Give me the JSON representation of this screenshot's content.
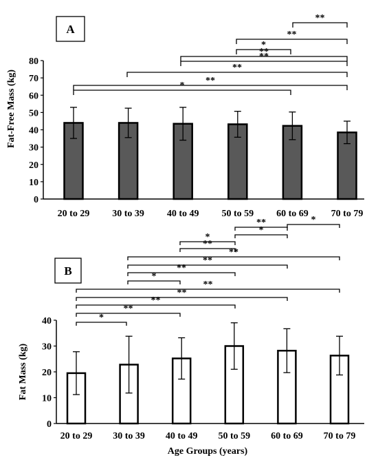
{
  "chart_data": [
    {
      "type": "bar",
      "panel_label": "A",
      "categories": [
        "20 to 29",
        "30 to 39",
        "40 to 49",
        "50 to 59",
        "60 to 69",
        "70 to 79"
      ],
      "values": [
        44,
        44,
        43.5,
        43.2,
        42.3,
        38.5
      ],
      "error": [
        9,
        8.5,
        9.5,
        7.5,
        8,
        6.5
      ],
      "ylabel": "Fat-Free Mass (kg)",
      "xlabel": "",
      "ylim": [
        0,
        80
      ],
      "yticks": [
        0,
        10,
        20,
        30,
        40,
        50,
        60,
        70,
        80
      ],
      "bar_fill": "#595959",
      "significance": [
        {
          "from": 0,
          "to": 4,
          "label": "*"
        },
        {
          "from": 0,
          "to": 5,
          "label": "**"
        },
        {
          "from": 1,
          "to": 5,
          "label": "**"
        },
        {
          "from": 2,
          "to": 5,
          "label": "**"
        },
        {
          "from": 3,
          "to": 5,
          "label": "**"
        },
        {
          "from": 3,
          "to": 4,
          "label": "*"
        },
        {
          "from": 3,
          "to": 5,
          "label": "**"
        },
        {
          "from": 4,
          "to": 5,
          "label": "**"
        }
      ]
    },
    {
      "type": "bar",
      "panel_label": "B",
      "categories": [
        "20 to 29",
        "30 to 39",
        "40 to 49",
        "50 to 59",
        "60 to 69",
        "70 to 79"
      ],
      "values": [
        19.5,
        22.8,
        25.2,
        30,
        28.2,
        26.3
      ],
      "error": [
        8.3,
        11,
        8,
        9,
        8.5,
        7.5
      ],
      "ylabel": "Fat Mass (kg)",
      "xlabel": "Age Groups (years)",
      "ylim": [
        0,
        40
      ],
      "yticks": [
        0,
        10,
        20,
        30,
        40
      ],
      "bar_fill": "#ffffff",
      "significance": [
        {
          "from": 0,
          "to": 1,
          "label": "*"
        },
        {
          "from": 0,
          "to": 2,
          "label": "**"
        },
        {
          "from": 0,
          "to": 3,
          "label": "**"
        },
        {
          "from": 0,
          "to": 4,
          "label": "**"
        },
        {
          "from": 0,
          "to": 5,
          "label": "**"
        },
        {
          "from": 1,
          "to": 3,
          "label": "*"
        },
        {
          "from": 1,
          "to": 4,
          "label": "**"
        },
        {
          "from": 1,
          "to": 5,
          "label": "**"
        },
        {
          "from": 2,
          "to": 4,
          "label": "**"
        },
        {
          "from": 2,
          "to": 3,
          "label": "**"
        },
        {
          "from": 3,
          "to": 4,
          "label": "*"
        },
        {
          "from": 3,
          "to": 4,
          "label": "*"
        },
        {
          "from": 3,
          "to": 5,
          "label": "**"
        },
        {
          "from": 4,
          "to": 5,
          "label": "*"
        }
      ]
    }
  ]
}
